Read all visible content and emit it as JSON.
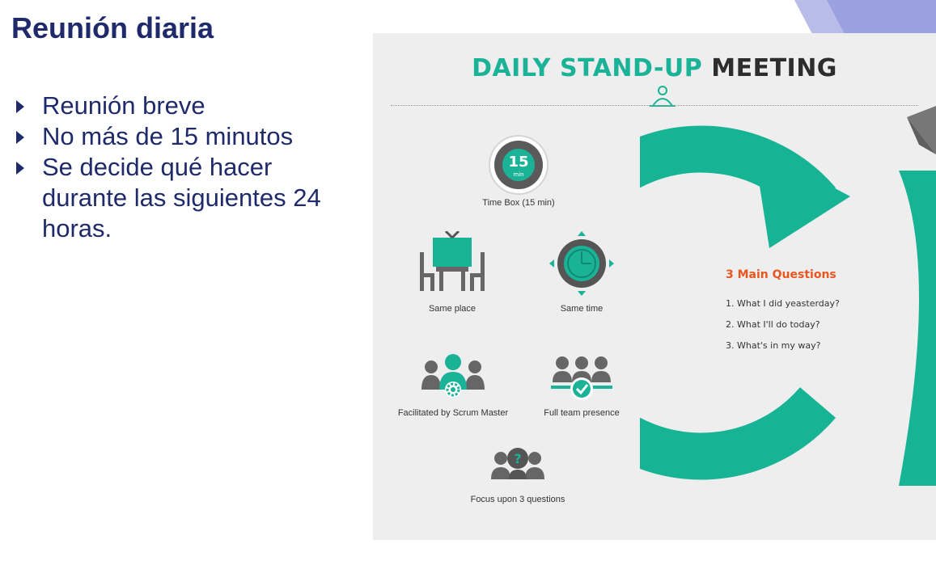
{
  "slide": {
    "title": "Reunión diaria",
    "bullets": [
      "Reunión breve",
      "No más de 15 minutos",
      "Se decide qué hacer durante las siguientes 24 horas."
    ]
  },
  "infographic": {
    "title_part1": "DAILY STAND-UP",
    "title_part2": "MEETING",
    "timer_number": "15",
    "timer_unit": "min",
    "items": {
      "timebox": "Time Box (15 min)",
      "same_place": "Same place",
      "same_time": "Same time",
      "facilitated": "Facilitated by Scrum Master",
      "full_team": "Full team presence",
      "focus": "Focus upon 3 questions"
    },
    "questions_title": "3 Main Questions",
    "questions": [
      "1.  What I did yeasterday?",
      "2.  What I'll do today?",
      "3.  What's in my way?"
    ]
  },
  "colors": {
    "slide_text": "#1f2a6b",
    "teal": "#1bb398",
    "orange": "#e8561f",
    "icon_gray": "#666666",
    "panel_bg": "#eeeeee"
  }
}
